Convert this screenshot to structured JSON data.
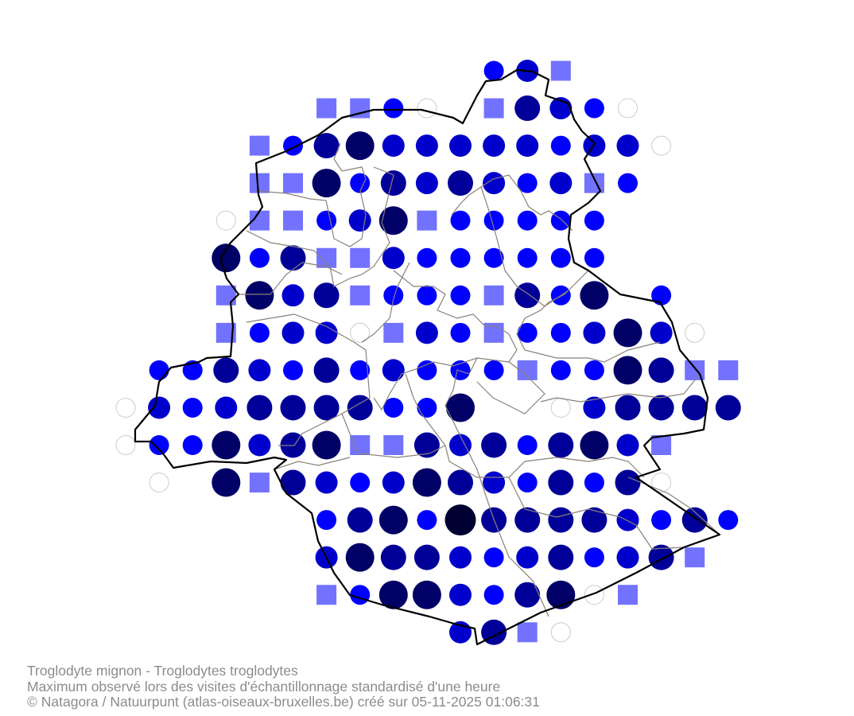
{
  "caption": {
    "species": "Troglodyte mignon - Troglodytes troglodytes",
    "description": "Maximum observé lors des visites d'échantillonnage standardisé d'une heure",
    "credit": "© Natagora / Natuurpunt (atlas-oiseaux-bruxelles.be) créé sur 05-11-2025 01:06:31"
  },
  "symbol_classes": {
    "E": {
      "shape": "circle-empty",
      "stroke": "#cccccc"
    },
    "S": {
      "shape": "square",
      "fill": "#7272ff"
    },
    "1": {
      "shape": "circle",
      "fill": "#0000ff",
      "level": 1
    },
    "2": {
      "shape": "circle",
      "fill": "#0000cc",
      "level": 2
    },
    "3": {
      "shape": "circle",
      "fill": "#000099",
      "level": 3
    },
    "4": {
      "shape": "circle",
      "fill": "#000066",
      "level": 4
    },
    "5": {
      "shape": "circle",
      "fill": "#000033",
      "level": 5
    }
  },
  "colors": {
    "region_border": "#000000",
    "commune_border": "#8a8078"
  },
  "grid": [
    "...........12S....",
    "......SS1E.S321E...",
    "....S13422222122E...",
    "....SS41323212S1...",
    "...ESS124S11111....",
    "...413SS2111111....",
    "...S423S111S314.1..",
    "...S122ES21S11242E",
    ".11321312111S1143SS",
    "E2123333114..E23333",
    "E114234SS3231342S",
    ".E.4S32124321313E.",
    "......1341533332131",
    "......24332123123S",
    "......S1442134ES..",
    "..........23SE...."
  ]
}
